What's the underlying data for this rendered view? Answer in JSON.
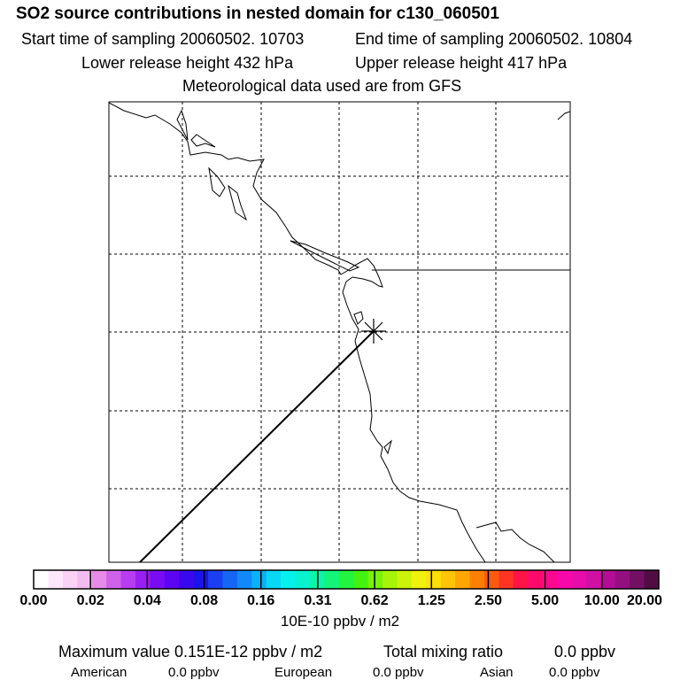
{
  "header": {
    "title": "SO2 source contributions in nested domain for c130_060501",
    "start_time": "Start time of sampling 20060502. 10703",
    "end_time": "End time of sampling 20060502. 10804",
    "lower_height": "Lower release height  432 hPa",
    "upper_height": "Upper release height  417 hPa",
    "met_data": "Meteorological data used are from GFS"
  },
  "colorbar": {
    "ticks": [
      "0.00",
      "0.02",
      "0.04",
      "0.08",
      "0.16",
      "0.31",
      "0.62",
      "1.25",
      "2.50",
      "5.00",
      "10.00",
      "20.00"
    ],
    "units": "10E-10 ppbv / m2",
    "colors": [
      "#ffffff",
      "#fde8fb",
      "#f9d2f6",
      "#f3bcf1",
      "#e78ae8",
      "#d062ea",
      "#b83cf0",
      "#9a1ff3",
      "#7a0cf5",
      "#5c05f2",
      "#3a08ee",
      "#1a14ea",
      "#1a3ef0",
      "#1666f6",
      "#108af8",
      "#0ab0f8",
      "#08d8f6",
      "#06f0ee",
      "#08f2d0",
      "#0cf4a8",
      "#14f478",
      "#22f440",
      "#44f210",
      "#78f208",
      "#a6f408",
      "#ccf40a",
      "#eef20c",
      "#fde00a",
      "#ffc406",
      "#ffa602",
      "#ff8000",
      "#ff5a10",
      "#ff3424",
      "#ff1448",
      "#ff0a6c",
      "#ff0890",
      "#f808a8",
      "#e80cac",
      "#d010a4",
      "#b40c94",
      "#941080",
      "#741064",
      "#520c44"
    ]
  },
  "summary": {
    "max_value": "Maximum value  0.151E-12 ppbv / m2",
    "total_mixing": "Total mixing ratio",
    "total_value": "0.0 ppbv",
    "american_label": "American",
    "american_value": "0.0 ppbv",
    "european_label": "European",
    "european_value": "0.0 ppbv",
    "asian_label": "Asian",
    "asian_value": "0.0 ppbv"
  }
}
